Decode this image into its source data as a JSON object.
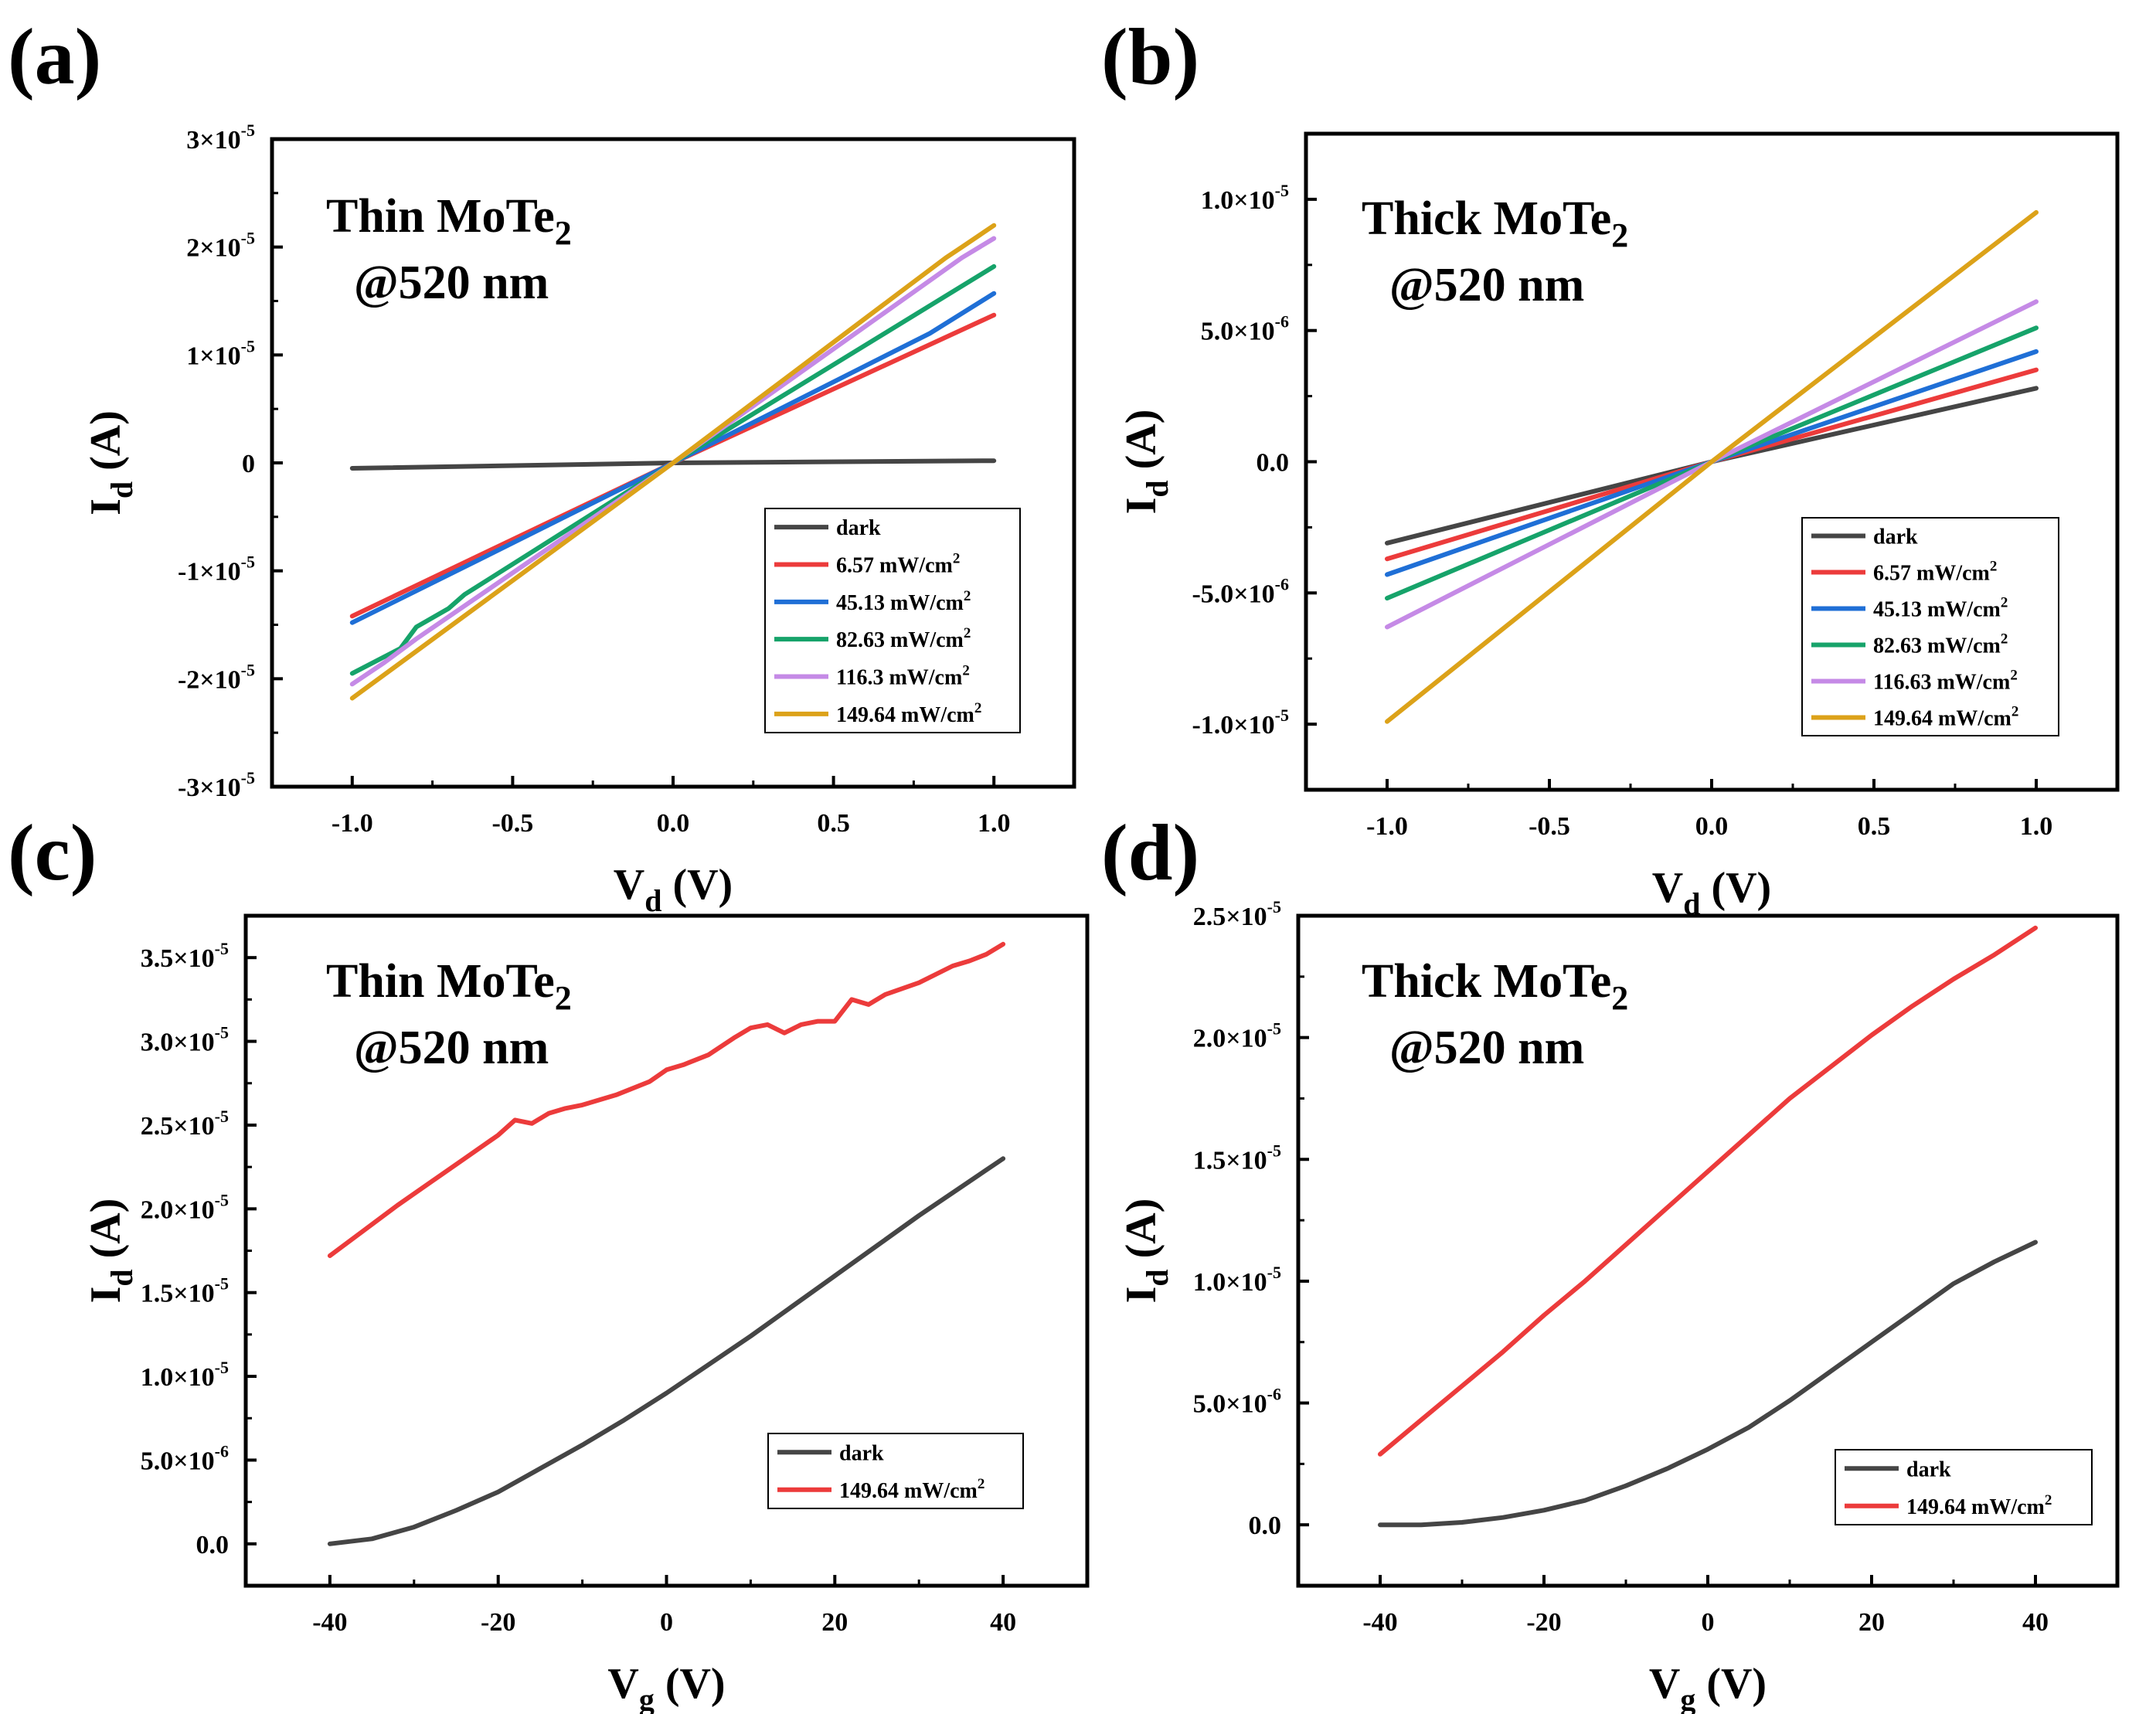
{
  "colors": {
    "dark": "#454545",
    "c657": "#ec3b3b",
    "c4513": "#1f6fd6",
    "c8263": "#16a36a",
    "c1163": "#c58ae6",
    "c14964": "#dca219",
    "red": "#ec3b3b"
  },
  "chart_data": [
    {
      "id": "a",
      "panel_label": "(a)",
      "type": "line",
      "annotation_line1": "Thin MoTe",
      "annotation_sub": "2",
      "annotation_line2": "@520 nm",
      "xlabel_main": "V",
      "xlabel_sub": "d",
      "xlabel_unit": " (V)",
      "ylabel_main": "I",
      "ylabel_sub": "d",
      "ylabel_unit": " (A)",
      "xlim": [
        -1.25,
        1.25
      ],
      "ylim": [
        -3e-05,
        3e-05
      ],
      "x_ticks": [
        -1.0,
        -0.5,
        0.0,
        0.5,
        1.0
      ],
      "x_tick_labels": [
        "-1.0",
        "-0.5",
        "0.0",
        "0.5",
        "1.0"
      ],
      "y_ticks": [
        3e-05,
        2e-05,
        1e-05,
        0,
        -1e-05,
        -2e-05,
        -3e-05
      ],
      "y_tick_labels": [
        {
          "mant": "3×10",
          "exp": "-5"
        },
        {
          "mant": "2×10",
          "exp": "-5"
        },
        {
          "mant": "1×10",
          "exp": "-5"
        },
        {
          "mant": "0",
          "exp": ""
        },
        {
          "mant": "-1×10",
          "exp": "-5"
        },
        {
          "mant": "-2×10",
          "exp": "-5"
        },
        {
          "mant": "-3×10",
          "exp": "-5"
        }
      ],
      "legend_position": "bottom-right",
      "series": [
        {
          "name": "dark",
          "base": "dark",
          "sup": "",
          "color": "dark",
          "x": [
            -1.0,
            0.0,
            1.0
          ],
          "y": [
            -5e-07,
            0,
            2e-07
          ]
        },
        {
          "name": "6.57 mW/cm2",
          "base": "6.57 mW/cm",
          "sup": "2",
          "color": "c657",
          "x": [
            -1.0,
            0.0,
            1.0
          ],
          "y": [
            -1.42e-05,
            0,
            1.37e-05
          ]
        },
        {
          "name": "45.13 mW/cm2",
          "base": "45.13 mW/cm",
          "sup": "2",
          "color": "c4513",
          "x": [
            -1.0,
            -0.6,
            0.0,
            0.8,
            1.0
          ],
          "y": [
            -1.48e-05,
            -8.9e-06,
            0,
            1.2e-05,
            1.57e-05
          ]
        },
        {
          "name": "82.63 mW/cm2",
          "base": "82.63 mW/cm",
          "sup": "2",
          "color": "c8263",
          "x": [
            -1.0,
            -0.85,
            -0.8,
            -0.7,
            -0.65,
            0.0,
            1.0
          ],
          "y": [
            -1.95e-05,
            -1.72e-05,
            -1.52e-05,
            -1.35e-05,
            -1.22e-05,
            0,
            1.82e-05
          ]
        },
        {
          "name": "116.3 mW/cm2",
          "base": "116.3 mW/cm",
          "sup": "2",
          "color": "c1163",
          "x": [
            -1.0,
            -0.9,
            -0.8,
            0.0,
            0.9,
            1.0
          ],
          "y": [
            -2.05e-05,
            -1.85e-05,
            -1.63e-05,
            0,
            1.9e-05,
            2.08e-05
          ]
        },
        {
          "name": "149.64 mW/cm2",
          "base": "149.64 mW/cm",
          "sup": "2",
          "color": "c14964",
          "x": [
            -1.0,
            0.0,
            0.85,
            0.9,
            1.0
          ],
          "y": [
            -2.18e-05,
            0,
            1.9e-05,
            2e-05,
            2.2e-05
          ]
        }
      ]
    },
    {
      "id": "b",
      "panel_label": "(b)",
      "type": "line",
      "annotation_line1": "Thick MoTe",
      "annotation_sub": "2",
      "annotation_line2": "@520 nm",
      "xlabel_main": "V",
      "xlabel_sub": "d",
      "xlabel_unit": " (V)",
      "ylabel_main": "I",
      "ylabel_sub": "d",
      "ylabel_unit": " (A)",
      "xlim": [
        -1.25,
        1.25
      ],
      "ylim": [
        -1.25e-05,
        1.25e-05
      ],
      "x_ticks": [
        -1.0,
        -0.5,
        0.0,
        0.5,
        1.0
      ],
      "x_tick_labels": [
        "-1.0",
        "-0.5",
        "0.0",
        "0.5",
        "1.0"
      ],
      "y_ticks": [
        1e-05,
        5e-06,
        0,
        -5e-06,
        -1e-05
      ],
      "y_tick_labels": [
        {
          "mant": "1.0×10",
          "exp": "-5"
        },
        {
          "mant": "5.0×10",
          "exp": "-6"
        },
        {
          "mant": "0.0",
          "exp": ""
        },
        {
          "mant": "-5.0×10",
          "exp": "-6"
        },
        {
          "mant": "-1.0×10",
          "exp": "-5"
        }
      ],
      "legend_position": "bottom-right",
      "series": [
        {
          "name": "dark",
          "base": "dark",
          "sup": "",
          "color": "dark",
          "x": [
            -1.0,
            0.0,
            1.0
          ],
          "y": [
            -3.1e-06,
            0,
            2.8e-06
          ]
        },
        {
          "name": "6.57 mW/cm2",
          "base": "6.57 mW/cm",
          "sup": "2",
          "color": "c657",
          "x": [
            -1.0,
            0.0,
            1.0
          ],
          "y": [
            -3.7e-06,
            0,
            3.5e-06
          ]
        },
        {
          "name": "45.13 mW/cm2",
          "base": "45.13 mW/cm",
          "sup": "2",
          "color": "c4513",
          "x": [
            -1.0,
            0.0,
            1.0
          ],
          "y": [
            -4.3e-06,
            0,
            4.2e-06
          ]
        },
        {
          "name": "82.63 mW/cm2",
          "base": "82.63 mW/cm",
          "sup": "2",
          "color": "c8263",
          "x": [
            -1.0,
            0.0,
            1.0
          ],
          "y": [
            -5.2e-06,
            0,
            5.1e-06
          ]
        },
        {
          "name": "116.63 mW/cm2",
          "base": "116.63 mW/cm",
          "sup": "2",
          "color": "c1163",
          "x": [
            -1.0,
            0.0,
            1.0
          ],
          "y": [
            -6.3e-06,
            0,
            6.1e-06
          ]
        },
        {
          "name": "149.64 mW/cm2",
          "base": "149.64 mW/cm",
          "sup": "2",
          "color": "c14964",
          "x": [
            -1.0,
            0.0,
            1.0
          ],
          "y": [
            -9.9e-06,
            0,
            9.5e-06
          ]
        }
      ]
    },
    {
      "id": "c",
      "panel_label": "(c)",
      "type": "line",
      "annotation_line1": "Thin MoTe",
      "annotation_sub": "2",
      "annotation_line2": "@520 nm",
      "xlabel_main": "V",
      "xlabel_sub": "g",
      "xlabel_unit": " (V)",
      "ylabel_main": "I",
      "ylabel_sub": "d",
      "ylabel_unit": " (A)",
      "xlim": [
        -50,
        50
      ],
      "ylim": [
        -2.5e-06,
        3.75e-05
      ],
      "x_ticks": [
        -40,
        -20,
        0,
        20,
        40
      ],
      "x_tick_labels": [
        "-40",
        "-20",
        "0",
        "20",
        "40"
      ],
      "y_ticks": [
        3.5e-05,
        3e-05,
        2.5e-05,
        2e-05,
        1.5e-05,
        1e-05,
        5e-06,
        0
      ],
      "y_tick_labels": [
        {
          "mant": "3.5×10",
          "exp": "-5"
        },
        {
          "mant": "3.0×10",
          "exp": "-5"
        },
        {
          "mant": "2.5×10",
          "exp": "-5"
        },
        {
          "mant": "2.0×10",
          "exp": "-5"
        },
        {
          "mant": "1.5×10",
          "exp": "-5"
        },
        {
          "mant": "1.0×10",
          "exp": "-5"
        },
        {
          "mant": "5.0×10",
          "exp": "-6"
        },
        {
          "mant": "0.0",
          "exp": ""
        }
      ],
      "legend_position": "bottom-right",
      "series": [
        {
          "name": "dark",
          "base": "dark",
          "sup": "",
          "color": "dark",
          "x": [
            -40,
            -35,
            -30,
            -25,
            -20,
            -15,
            -10,
            -5,
            0,
            5,
            10,
            15,
            20,
            25,
            30,
            35,
            40
          ],
          "y": [
            0,
            3e-07,
            1e-06,
            2e-06,
            3.1e-06,
            4.5e-06,
            5.9e-06,
            7.4e-06,
            9e-06,
            1.07e-05,
            1.24e-05,
            1.42e-05,
            1.6e-05,
            1.78e-05,
            1.96e-05,
            2.13e-05,
            2.3e-05
          ]
        },
        {
          "name": "149.64 mW/cm2",
          "base": "149.64 mW/cm",
          "sup": "2",
          "color": "red",
          "x": [
            -40,
            -36,
            -32,
            -28,
            -24,
            -20,
            -18,
            -16,
            -14,
            -12,
            -10,
            -6,
            -2,
            0,
            2,
            5,
            8,
            10,
            12,
            14,
            16,
            18,
            20,
            22,
            24,
            26,
            30,
            34,
            36,
            38,
            40
          ],
          "y": [
            1.72e-05,
            1.87e-05,
            2.02e-05,
            2.16e-05,
            2.3e-05,
            2.44e-05,
            2.53e-05,
            2.51e-05,
            2.57e-05,
            2.6e-05,
            2.62e-05,
            2.68e-05,
            2.76e-05,
            2.83e-05,
            2.86e-05,
            2.92e-05,
            3.02e-05,
            3.08e-05,
            3.1e-05,
            3.05e-05,
            3.1e-05,
            3.12e-05,
            3.12e-05,
            3.25e-05,
            3.22e-05,
            3.28e-05,
            3.35e-05,
            3.45e-05,
            3.48e-05,
            3.52e-05,
            3.58e-05
          ]
        }
      ]
    },
    {
      "id": "d",
      "panel_label": "(d)",
      "type": "line",
      "annotation_line1": "Thick MoTe",
      "annotation_sub": "2",
      "annotation_line2": "@520 nm",
      "xlabel_main": "V",
      "xlabel_sub": "g",
      "xlabel_unit": " (V)",
      "ylabel_main": "I",
      "ylabel_sub": "d",
      "ylabel_unit": " (A)",
      "xlim": [
        -50,
        50
      ],
      "ylim": [
        -2.5e-06,
        2.5e-05
      ],
      "x_ticks": [
        -40,
        -20,
        0,
        20,
        40
      ],
      "x_tick_labels": [
        "-40",
        "-20",
        "0",
        "20",
        "40"
      ],
      "y_ticks": [
        2.5e-05,
        2e-05,
        1.5e-05,
        1e-05,
        5e-06,
        0
      ],
      "y_tick_labels": [
        {
          "mant": "2.5×10",
          "exp": "-5"
        },
        {
          "mant": "2.0×10",
          "exp": "-5"
        },
        {
          "mant": "1.5×10",
          "exp": "-5"
        },
        {
          "mant": "1.0×10",
          "exp": "-5"
        },
        {
          "mant": "5.0×10",
          "exp": "-6"
        },
        {
          "mant": "0.0",
          "exp": ""
        }
      ],
      "legend_position": "bottom-right",
      "series": [
        {
          "name": "dark",
          "base": "dark",
          "sup": "",
          "color": "dark",
          "x": [
            -40,
            -35,
            -30,
            -25,
            -20,
            -15,
            -10,
            -5,
            0,
            5,
            10,
            15,
            20,
            25,
            30,
            35,
            40
          ],
          "y": [
            0,
            0,
            1e-07,
            3e-07,
            6e-07,
            1e-06,
            1.6e-06,
            2.3e-06,
            3.1e-06,
            4e-06,
            5.1e-06,
            6.3e-06,
            7.5e-06,
            8.7e-06,
            9.9e-06,
            1.08e-05,
            1.16e-05
          ]
        },
        {
          "name": "149.64 mW/cm2",
          "base": "149.64 mW/cm",
          "sup": "2",
          "color": "red",
          "x": [
            -40,
            -35,
            -30,
            -25,
            -20,
            -15,
            -10,
            -5,
            0,
            5,
            10,
            15,
            20,
            25,
            30,
            35,
            40
          ],
          "y": [
            2.9e-06,
            4.3e-06,
            5.7e-06,
            7.1e-06,
            8.6e-06,
            1e-05,
            1.15e-05,
            1.3e-05,
            1.45e-05,
            1.6e-05,
            1.75e-05,
            1.88e-05,
            2.01e-05,
            2.13e-05,
            2.24e-05,
            2.34e-05,
            2.45e-05
          ]
        }
      ]
    }
  ]
}
